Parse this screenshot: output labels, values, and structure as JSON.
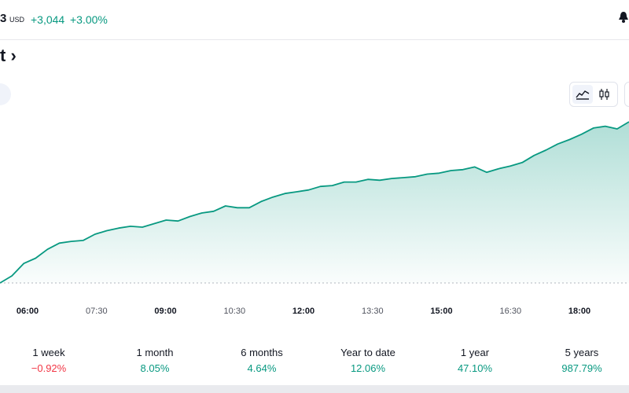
{
  "header": {
    "price_fragment": "3",
    "currency": "USD",
    "change": "+3,044",
    "change_percent": "+3.00%"
  },
  "title_fragment": "t",
  "title_chevron": "›",
  "chart_toggle": {
    "active": "area",
    "options": [
      "area-chart-icon",
      "candles-icon"
    ]
  },
  "chart_data": {
    "type": "area",
    "x_ticks": [
      "06:00",
      "07:30",
      "09:00",
      "10:30",
      "12:00",
      "13:30",
      "15:00",
      "16:30",
      "18:00"
    ],
    "x_ticks_bold": [
      "06:00",
      "09:00",
      "12:00",
      "15:00",
      "18:00"
    ],
    "x": [
      "05:15",
      "05:30",
      "05:45",
      "06:00",
      "06:15",
      "06:30",
      "06:45",
      "07:00",
      "07:15",
      "07:30",
      "07:45",
      "08:00",
      "08:15",
      "08:30",
      "08:45",
      "09:00",
      "09:15",
      "09:30",
      "09:45",
      "10:00",
      "10:15",
      "10:30",
      "10:45",
      "11:00",
      "11:15",
      "11:30",
      "11:45",
      "12:00",
      "12:15",
      "12:30",
      "12:45",
      "13:00",
      "13:15",
      "13:30",
      "13:45",
      "14:00",
      "14:15",
      "14:30",
      "14:45",
      "15:00",
      "15:15",
      "15:30",
      "15:45",
      "16:00",
      "16:15",
      "16:30",
      "16:45",
      "17:00",
      "17:15",
      "17:30",
      "17:45",
      "18:00",
      "18:15",
      "18:30"
    ],
    "values": [
      0.0,
      4.0,
      11.0,
      14.0,
      19.0,
      22.5,
      23.5,
      24.0,
      27.5,
      29.5,
      31.0,
      32.0,
      31.5,
      33.5,
      35.5,
      35.0,
      37.5,
      39.5,
      40.5,
      43.5,
      42.5,
      42.5,
      46.0,
      48.5,
      50.5,
      51.5,
      52.5,
      54.5,
      55.0,
      57.0,
      57.0,
      58.5,
      58.0,
      59.0,
      59.5,
      60.0,
      61.5,
      62.0,
      63.5,
      64.0,
      65.5,
      62.5,
      64.5,
      66.0,
      68.0,
      72.0,
      75.0,
      78.5,
      81.0,
      84.0,
      87.5,
      88.5,
      87.0,
      91.0
    ],
    "baseline": 0,
    "line_color": "#089981",
    "baseline_style": "dotted"
  },
  "performance": [
    {
      "label": "1 week",
      "value": "−0.92%",
      "trend": "negative"
    },
    {
      "label": "1 month",
      "value": "8.05%",
      "trend": "positive"
    },
    {
      "label": "6 months",
      "value": "4.64%",
      "trend": "positive"
    },
    {
      "label": "Year to date",
      "value": "12.06%",
      "trend": "positive"
    },
    {
      "label": "1 year",
      "value": "47.10%",
      "trend": "positive"
    },
    {
      "label": "5 years",
      "value": "987.79%",
      "trend": "positive"
    }
  ],
  "colors": {
    "positive": "#089981",
    "negative": "#f23645"
  }
}
